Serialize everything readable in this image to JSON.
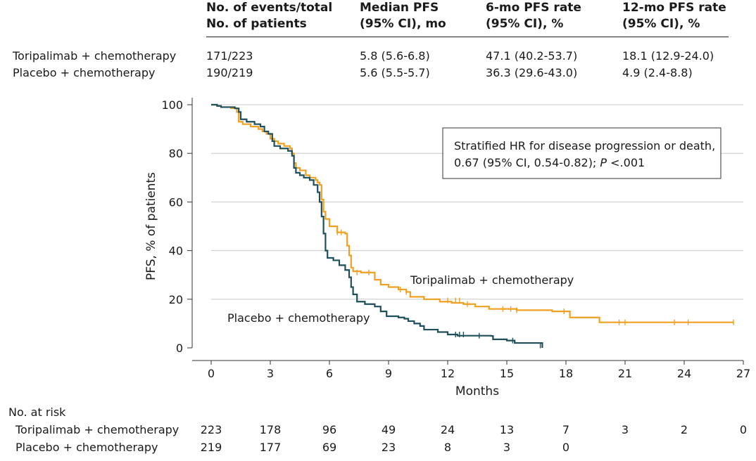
{
  "summary_table": {
    "headers": [
      [
        "No. of events/total",
        "No. of patients"
      ],
      [
        "Median PFS",
        "(95% CI), mo"
      ],
      [
        "6-mo PFS rate",
        "(95% CI), %"
      ],
      [
        "12-mo PFS rate",
        "(95% CI), %"
      ]
    ],
    "rows": [
      {
        "group": "Toripalimab + chemotherapy",
        "events": "171/223",
        "median": "5.8 (5.6-6.8)",
        "rate6": "47.1 (40.2-53.7)",
        "rate12": "18.1 (12.9-24.0)"
      },
      {
        "group": "Placebo + chemotherapy",
        "events": "190/219",
        "median": "5.6 (5.5-5.7)",
        "rate6": "36.3 (29.6-43.0)",
        "rate12": "4.9 (2.4-8.8)"
      }
    ]
  },
  "chart_data": {
    "type": "line",
    "title": "",
    "xlabel": "Months",
    "ylabel": "PFS, % of patients",
    "xlim": [
      0,
      27
    ],
    "ylim": [
      0,
      100
    ],
    "xticks": [
      0,
      3,
      6,
      9,
      12,
      15,
      18,
      21,
      24,
      27
    ],
    "yticks": [
      0,
      20,
      40,
      60,
      80,
      100
    ],
    "grid": "horizontal",
    "annotation": {
      "line1": "Stratified HR for disease progression or death,",
      "line2_prefix": "0.67 (95% CI, 0.54-0.82); ",
      "line2_p": "P",
      "line2_suffix": " <.001"
    },
    "series": [
      {
        "name": "Toripalimab + chemotherapy",
        "color": "#f0a020",
        "points": [
          [
            0,
            100
          ],
          [
            0.3,
            99.5
          ],
          [
            0.5,
            99
          ],
          [
            1.0,
            98.6
          ],
          [
            1.3,
            97
          ],
          [
            1.4,
            93
          ],
          [
            1.6,
            92
          ],
          [
            2.0,
            91
          ],
          [
            2.4,
            90
          ],
          [
            2.6,
            89
          ],
          [
            2.8,
            88
          ],
          [
            3.0,
            86
          ],
          [
            3.2,
            85
          ],
          [
            3.4,
            84
          ],
          [
            3.7,
            83
          ],
          [
            4.0,
            82
          ],
          [
            4.1,
            80
          ],
          [
            4.2,
            76
          ],
          [
            4.3,
            74
          ],
          [
            4.5,
            73
          ],
          [
            4.8,
            71
          ],
          [
            5.0,
            70
          ],
          [
            5.3,
            69
          ],
          [
            5.4,
            68
          ],
          [
            5.5,
            67
          ],
          [
            5.6,
            61
          ],
          [
            5.7,
            56
          ],
          [
            5.8,
            53
          ],
          [
            6.0,
            50
          ],
          [
            6.4,
            47.5
          ],
          [
            6.8,
            47
          ],
          [
            6.9,
            42
          ],
          [
            7.0,
            38
          ],
          [
            7.1,
            33
          ],
          [
            7.2,
            31.5
          ],
          [
            7.6,
            31
          ],
          [
            8.3,
            28
          ],
          [
            8.6,
            26
          ],
          [
            9.0,
            25
          ],
          [
            9.5,
            24
          ],
          [
            9.9,
            23
          ],
          [
            10.1,
            21
          ],
          [
            10.8,
            20
          ],
          [
            11.6,
            19
          ],
          [
            12.2,
            18.5
          ],
          [
            12.8,
            18
          ],
          [
            13.4,
            17
          ],
          [
            14.1,
            16
          ],
          [
            15.5,
            15.5
          ],
          [
            16.5,
            15.5
          ],
          [
            17.3,
            15
          ],
          [
            18.1,
            15
          ],
          [
            18.2,
            12.5
          ],
          [
            19.6,
            12.5
          ],
          [
            19.7,
            10.5
          ],
          [
            26.5,
            10.5
          ]
        ],
        "censor_marks": [
          [
            6.4,
            47.5
          ],
          [
            6.6,
            47.5
          ],
          [
            7.4,
            31
          ],
          [
            8.0,
            31
          ],
          [
            9.6,
            24
          ],
          [
            9.9,
            23
          ],
          [
            12.0,
            19.5
          ],
          [
            12.4,
            19.5
          ],
          [
            12.6,
            19.5
          ],
          [
            13.0,
            18
          ],
          [
            14.8,
            16
          ],
          [
            15.2,
            16
          ],
          [
            15.5,
            15.5
          ],
          [
            17.9,
            15
          ],
          [
            20.7,
            10.5
          ],
          [
            21.0,
            10.5
          ],
          [
            23.5,
            10.5
          ],
          [
            24.2,
            10.5
          ],
          [
            26.5,
            10.5
          ]
        ]
      },
      {
        "name": "Placebo + chemotherapy",
        "color": "#1e4f5a",
        "points": [
          [
            0,
            100
          ],
          [
            0.3,
            99.5
          ],
          [
            0.5,
            99
          ],
          [
            1.2,
            98.5
          ],
          [
            1.4,
            97
          ],
          [
            1.5,
            94
          ],
          [
            1.8,
            93
          ],
          [
            2.2,
            92
          ],
          [
            2.5,
            91
          ],
          [
            2.7,
            89
          ],
          [
            2.9,
            88
          ],
          [
            3.1,
            85
          ],
          [
            3.2,
            83
          ],
          [
            3.5,
            82
          ],
          [
            3.9,
            81
          ],
          [
            4.1,
            79
          ],
          [
            4.2,
            74
          ],
          [
            4.3,
            72
          ],
          [
            4.5,
            71
          ],
          [
            4.7,
            70
          ],
          [
            5.0,
            69
          ],
          [
            5.2,
            67
          ],
          [
            5.4,
            64
          ],
          [
            5.5,
            60
          ],
          [
            5.6,
            54
          ],
          [
            5.7,
            47
          ],
          [
            5.8,
            40
          ],
          [
            5.9,
            37
          ],
          [
            6.2,
            36
          ],
          [
            6.5,
            34
          ],
          [
            6.8,
            32
          ],
          [
            7.0,
            29
          ],
          [
            7.1,
            25
          ],
          [
            7.2,
            22
          ],
          [
            7.4,
            19
          ],
          [
            7.8,
            18
          ],
          [
            8.3,
            17
          ],
          [
            8.6,
            15
          ],
          [
            8.9,
            13
          ],
          [
            9.5,
            12.5
          ],
          [
            9.8,
            12
          ],
          [
            10.0,
            11
          ],
          [
            10.3,
            10
          ],
          [
            10.6,
            9
          ],
          [
            10.8,
            7.5
          ],
          [
            11.5,
            6.5
          ],
          [
            12.0,
            5.5
          ],
          [
            12.5,
            5
          ],
          [
            13.5,
            5
          ],
          [
            14.2,
            4.9
          ],
          [
            14.3,
            3.5
          ],
          [
            15.0,
            3
          ],
          [
            15.4,
            2
          ],
          [
            16.7,
            2
          ],
          [
            16.8,
            0
          ]
        ],
        "censor_marks": [
          [
            12.4,
            5.5
          ],
          [
            12.6,
            5.5
          ],
          [
            12.8,
            5.5
          ],
          [
            13.6,
            5
          ],
          [
            15.3,
            3
          ],
          [
            16.7,
            1
          ]
        ]
      }
    ],
    "line_labels": [
      {
        "text": "Toripalimab + chemotherapy",
        "series": 0
      },
      {
        "text": "Placebo + chemotherapy",
        "series": 1
      }
    ]
  },
  "risk_table": {
    "title": "No. at risk",
    "rows": [
      {
        "label": "Toripalimab + chemotherapy",
        "values": [
          "223",
          "178",
          "96",
          "49",
          "24",
          "13",
          "7",
          "3",
          "2",
          "0"
        ]
      },
      {
        "label": "Placebo + chemotherapy",
        "values": [
          "219",
          "177",
          "69",
          "23",
          "8",
          "3",
          "0"
        ]
      }
    ]
  }
}
